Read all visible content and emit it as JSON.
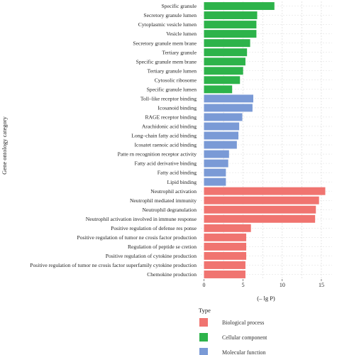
{
  "chart_data": {
    "type": "bar",
    "orientation": "horizontal",
    "xlabel": "(– lg P)",
    "ylabel": "Gene ontology category",
    "xlim": [
      0,
      16
    ],
    "xticks": [
      0,
      5,
      10,
      15
    ],
    "grid": true,
    "legend_position": "bottom-center",
    "legend_title": "Type",
    "series": [
      {
        "name": "Biological process",
        "color": "#f07470"
      },
      {
        "name": "Cellular component",
        "color": "#2db34a"
      },
      {
        "name": "Molecular function",
        "color": "#7a9ad6"
      }
    ],
    "bars": [
      {
        "label": "Specific granule",
        "value": 9.0,
        "type": "Cellular component"
      },
      {
        "label": "Secretory granule lumen",
        "value": 6.8,
        "type": "Cellular component"
      },
      {
        "label": "Cytoplasmic vesicle lumen",
        "value": 6.7,
        "type": "Cellular component"
      },
      {
        "label": "Vesicle lumen",
        "value": 6.7,
        "type": "Cellular component"
      },
      {
        "label": "Secretory granule mem brane",
        "value": 5.9,
        "type": "Cellular component"
      },
      {
        "label": "Tertiary granule",
        "value": 5.5,
        "type": "Cellular component"
      },
      {
        "label": "Specific granule mem brane",
        "value": 5.3,
        "type": "Cellular component"
      },
      {
        "label": "Tertiary granule lumen",
        "value": 5.0,
        "type": "Cellular component"
      },
      {
        "label": "Cytosolic ribosome",
        "value": 4.6,
        "type": "Cellular component"
      },
      {
        "label": "Specific granule lumen",
        "value": 3.6,
        "type": "Cellular component"
      },
      {
        "label": "Toll–like receptor binding",
        "value": 6.3,
        "type": "Molecular function"
      },
      {
        "label": "Icosanoid binding",
        "value": 6.2,
        "type": "Molecular function"
      },
      {
        "label": "RAGE receptor binding",
        "value": 4.9,
        "type": "Molecular function"
      },
      {
        "label": "Arachidonic acid binding",
        "value": 4.5,
        "type": "Molecular function"
      },
      {
        "label": "Long–chain fatty acid binding",
        "value": 4.4,
        "type": "Molecular function"
      },
      {
        "label": "Icosatet raenoic acid binding",
        "value": 4.2,
        "type": "Molecular function"
      },
      {
        "label": "Patte rn recognition receptor activity",
        "value": 3.2,
        "type": "Molecular function"
      },
      {
        "label": "Fatty acid derivative binding",
        "value": 3.1,
        "type": "Molecular function"
      },
      {
        "label": "Fatty acid binding",
        "value": 2.8,
        "type": "Molecular function"
      },
      {
        "label": "Lipid binding",
        "value": 2.8,
        "type": "Molecular function"
      },
      {
        "label": "Neutrophil activation",
        "value": 15.5,
        "type": "Biological process"
      },
      {
        "label": "Neutrophil mediated immunity",
        "value": 14.7,
        "type": "Biological process"
      },
      {
        "label": "Neutrophil degranulation",
        "value": 14.3,
        "type": "Biological process"
      },
      {
        "label": "Neutrophil activation involved in immune response",
        "value": 14.2,
        "type": "Biological process"
      },
      {
        "label": "Positive regulation of defense res ponse",
        "value": 6.0,
        "type": "Biological process"
      },
      {
        "label": "Positive regulation of tumor ne crosis factor production",
        "value": 5.4,
        "type": "Biological process"
      },
      {
        "label": "Regulation of peptide se cretion",
        "value": 5.4,
        "type": "Biological process"
      },
      {
        "label": "Positive regulation of cytokine production",
        "value": 5.4,
        "type": "Biological process"
      },
      {
        "label": "Positive regulation of tumor ne crosis factor superfamily cytokine production",
        "value": 5.3,
        "type": "Biological process"
      },
      {
        "label": "Chemokine production",
        "value": 5.3,
        "type": "Biological process"
      }
    ]
  }
}
